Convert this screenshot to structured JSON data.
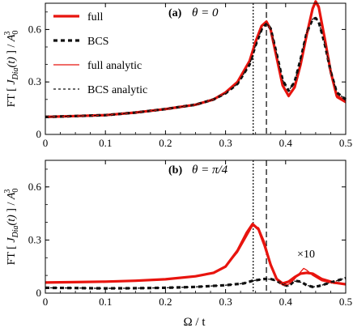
{
  "chart_data": [
    {
      "type": "line",
      "panel_label": "(a)",
      "panel_title": "θ = 0",
      "xlim": [
        0,
        0.5
      ],
      "ylim": [
        0,
        0.75
      ],
      "xticks": [
        "0",
        "0.1",
        "0.2",
        "0.3",
        "0.4",
        "0.5"
      ],
      "yticks": [
        {
          "v": 0,
          "label": "0"
        },
        {
          "v": 0.3,
          "label": "0.3"
        },
        {
          "v": 0.6,
          "label": "0.6"
        }
      ],
      "ylabel": "FT [ J_Dia(t) ] / A_0^3",
      "xlabel": "",
      "vlines": [
        {
          "x": 0.346,
          "style": "dotted"
        },
        {
          "x": 0.368,
          "style": "dashed"
        }
      ],
      "legend": [
        {
          "label": "full",
          "style": "thick-red"
        },
        {
          "label": "BCS",
          "style": "thick-black-dashed"
        },
        {
          "label": "full analytic",
          "style": "thin-red"
        },
        {
          "label": "BCS analytic",
          "style": "thin-black-dashed"
        }
      ],
      "series": [
        {
          "name": "full",
          "style": "thick-red",
          "x": [
            0,
            0.05,
            0.1,
            0.15,
            0.2,
            0.22,
            0.25,
            0.28,
            0.3,
            0.32,
            0.34,
            0.35,
            0.36,
            0.368,
            0.375,
            0.385,
            0.395,
            0.405,
            0.415,
            0.425,
            0.435,
            0.445,
            0.45,
            0.455,
            0.465,
            0.475,
            0.485,
            0.5
          ],
          "y": [
            0.1,
            0.105,
            0.11,
            0.125,
            0.145,
            0.155,
            0.17,
            0.2,
            0.24,
            0.3,
            0.42,
            0.53,
            0.62,
            0.645,
            0.6,
            0.44,
            0.28,
            0.22,
            0.27,
            0.4,
            0.57,
            0.72,
            0.76,
            0.73,
            0.55,
            0.36,
            0.22,
            0.19
          ]
        },
        {
          "name": "BCS",
          "style": "thick-black-dashed",
          "x": [
            0,
            0.05,
            0.1,
            0.15,
            0.2,
            0.22,
            0.25,
            0.28,
            0.3,
            0.32,
            0.34,
            0.35,
            0.36,
            0.368,
            0.375,
            0.385,
            0.395,
            0.405,
            0.415,
            0.425,
            0.435,
            0.445,
            0.45,
            0.455,
            0.465,
            0.475,
            0.485,
            0.5
          ],
          "y": [
            0.1,
            0.105,
            0.11,
            0.125,
            0.145,
            0.155,
            0.17,
            0.2,
            0.235,
            0.29,
            0.4,
            0.51,
            0.6,
            0.635,
            0.605,
            0.46,
            0.31,
            0.25,
            0.3,
            0.43,
            0.58,
            0.66,
            0.665,
            0.645,
            0.52,
            0.36,
            0.24,
            0.2
          ]
        },
        {
          "name": "full analytic",
          "style": "thin-red",
          "x": [
            0,
            0.05,
            0.1,
            0.15,
            0.2,
            0.22,
            0.25,
            0.28,
            0.3,
            0.32,
            0.34,
            0.35,
            0.36,
            0.368,
            0.375,
            0.385,
            0.395,
            0.405,
            0.415,
            0.425,
            0.435,
            0.445,
            0.45,
            0.455,
            0.465,
            0.475,
            0.485,
            0.5
          ],
          "y": [
            0.1,
            0.105,
            0.11,
            0.125,
            0.145,
            0.155,
            0.17,
            0.2,
            0.24,
            0.3,
            0.42,
            0.53,
            0.62,
            0.645,
            0.6,
            0.44,
            0.28,
            0.215,
            0.265,
            0.39,
            0.56,
            0.71,
            0.75,
            0.72,
            0.54,
            0.35,
            0.21,
            0.18
          ]
        },
        {
          "name": "BCS analytic",
          "style": "thin-black-dashed",
          "x": [
            0,
            0.05,
            0.1,
            0.15,
            0.2,
            0.22,
            0.25,
            0.28,
            0.3,
            0.32,
            0.34,
            0.35,
            0.36,
            0.368,
            0.375,
            0.385,
            0.395,
            0.405,
            0.415,
            0.425,
            0.435,
            0.445,
            0.45,
            0.455,
            0.465,
            0.475,
            0.485,
            0.5
          ],
          "y": [
            0.1,
            0.105,
            0.11,
            0.125,
            0.145,
            0.155,
            0.17,
            0.2,
            0.235,
            0.29,
            0.4,
            0.51,
            0.6,
            0.635,
            0.605,
            0.46,
            0.31,
            0.25,
            0.3,
            0.43,
            0.58,
            0.66,
            0.665,
            0.645,
            0.52,
            0.36,
            0.24,
            0.2
          ]
        }
      ]
    },
    {
      "type": "line",
      "panel_label": "(b)",
      "panel_title": "θ = π/4",
      "annotation": "×10",
      "xlim": [
        0,
        0.5
      ],
      "ylim": [
        0,
        0.75
      ],
      "xticks": [
        "0",
        "0.1",
        "0.2",
        "0.3",
        "0.4",
        "0.5"
      ],
      "yticks": [
        {
          "v": 0,
          "label": "0"
        },
        {
          "v": 0.3,
          "label": "0.3"
        },
        {
          "v": 0.6,
          "label": "0.6"
        }
      ],
      "ylabel": "FT [ J_Dia(t) ] / A_0^3",
      "xlabel": "Ω / t",
      "vlines": [
        {
          "x": 0.346,
          "style": "dotted"
        },
        {
          "x": 0.368,
          "style": "dashed"
        }
      ],
      "series": [
        {
          "name": "full",
          "style": "thick-red",
          "x": [
            0,
            0.05,
            0.1,
            0.15,
            0.2,
            0.25,
            0.28,
            0.3,
            0.32,
            0.335,
            0.345,
            0.355,
            0.365,
            0.375,
            0.385,
            0.395,
            0.405,
            0.415,
            0.425,
            0.435,
            0.445,
            0.46,
            0.48,
            0.5
          ],
          "y": [
            0.06,
            0.062,
            0.065,
            0.07,
            0.078,
            0.095,
            0.115,
            0.15,
            0.24,
            0.34,
            0.39,
            0.36,
            0.27,
            0.16,
            0.08,
            0.055,
            0.065,
            0.09,
            0.11,
            0.115,
            0.11,
            0.08,
            0.06,
            0.05
          ]
        },
        {
          "name": "BCS",
          "style": "thick-black-dashed",
          "x": [
            0,
            0.05,
            0.1,
            0.15,
            0.2,
            0.25,
            0.3,
            0.33,
            0.345,
            0.355,
            0.365,
            0.375,
            0.385,
            0.395,
            0.405,
            0.415,
            0.425,
            0.435,
            0.445,
            0.455,
            0.465,
            0.475,
            0.485,
            0.5
          ],
          "y": [
            0.03,
            0.029,
            0.027,
            0.028,
            0.03,
            0.035,
            0.045,
            0.055,
            0.07,
            0.075,
            0.08,
            0.08,
            0.07,
            0.05,
            0.04,
            0.07,
            0.065,
            0.045,
            0.035,
            0.04,
            0.05,
            0.06,
            0.07,
            0.085
          ]
        },
        {
          "name": "full analytic",
          "style": "thin-red",
          "x": [
            0,
            0.05,
            0.1,
            0.15,
            0.2,
            0.25,
            0.28,
            0.3,
            0.32,
            0.335,
            0.345,
            0.355,
            0.365,
            0.375,
            0.385,
            0.395,
            0.405,
            0.415,
            0.425,
            0.43,
            0.435,
            0.445,
            0.46,
            0.48,
            0.5
          ],
          "y": [
            0.06,
            0.062,
            0.065,
            0.07,
            0.078,
            0.095,
            0.115,
            0.15,
            0.23,
            0.32,
            0.38,
            0.37,
            0.29,
            0.17,
            0.075,
            0.045,
            0.05,
            0.08,
            0.12,
            0.14,
            0.13,
            0.1,
            0.07,
            0.055,
            0.05
          ]
        },
        {
          "name": "BCS analytic",
          "style": "thin-black-dashed",
          "x": [
            0,
            0.05,
            0.1,
            0.15,
            0.2,
            0.25,
            0.3,
            0.33,
            0.345,
            0.355,
            0.365,
            0.375,
            0.385,
            0.395,
            0.405,
            0.415,
            0.425,
            0.435,
            0.445,
            0.455,
            0.465,
            0.475,
            0.485,
            0.5
          ],
          "y": [
            0.03,
            0.029,
            0.027,
            0.028,
            0.03,
            0.035,
            0.045,
            0.055,
            0.07,
            0.075,
            0.08,
            0.078,
            0.068,
            0.05,
            0.04,
            0.068,
            0.062,
            0.045,
            0.035,
            0.04,
            0.05,
            0.06,
            0.07,
            0.085
          ]
        }
      ]
    }
  ]
}
